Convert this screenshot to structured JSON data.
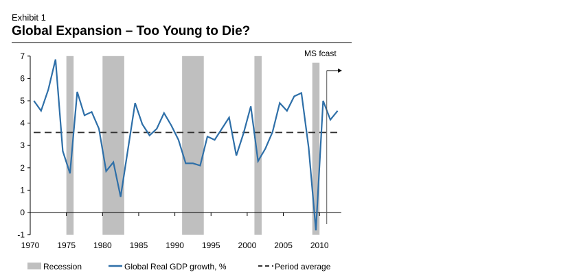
{
  "exhibit": "Exhibit 1",
  "title": "Global Expansion – Too Young to Die?",
  "chart_data": {
    "type": "line",
    "title": "Global Expansion – Too Young to Die?",
    "xlabel": "",
    "ylabel": "",
    "xlim": [
      1970,
      2013
    ],
    "ylim": [
      -1,
      7
    ],
    "x_ticks": [
      1970,
      1975,
      1980,
      1985,
      1990,
      1995,
      2000,
      2005,
      2010
    ],
    "y_ticks": [
      -1,
      0,
      1,
      2,
      3,
      4,
      5,
      6,
      7
    ],
    "series": [
      {
        "name": "Global Real GDP growth, %",
        "color": "#2e6fa8",
        "x": [
          1970,
          1971,
          1972,
          1973,
          1974,
          1975,
          1976,
          1977,
          1978,
          1979,
          1980,
          1981,
          1982,
          1983,
          1984,
          1985,
          1986,
          1987,
          1988,
          1989,
          1990,
          1991,
          1992,
          1993,
          1994,
          1995,
          1996,
          1997,
          1998,
          1999,
          2000,
          2001,
          2002,
          2003,
          2004,
          2005,
          2006,
          2007,
          2008,
          2009,
          2010,
          2011,
          2012
        ],
        "values": [
          5.0,
          4.55,
          5.5,
          6.85,
          2.75,
          1.75,
          5.4,
          4.35,
          4.5,
          3.75,
          1.85,
          2.25,
          0.7,
          2.8,
          4.9,
          3.95,
          3.45,
          3.75,
          4.45,
          3.9,
          3.25,
          2.2,
          2.2,
          2.1,
          3.4,
          3.25,
          3.75,
          4.25,
          2.55,
          3.55,
          4.75,
          2.3,
          2.85,
          3.6,
          4.9,
          4.55,
          5.2,
          5.35,
          2.9,
          -0.8,
          5.0,
          4.15,
          4.55
        ]
      }
    ],
    "period_average": {
      "name": "Period average",
      "value": 3.58
    },
    "recessions": {
      "name": "Recession",
      "color": "#bfbfbf",
      "periods": [
        [
          1975,
          1976
        ],
        [
          1980,
          1983
        ],
        [
          1991,
          1994
        ],
        [
          2001,
          2002
        ],
        [
          2009,
          2010
        ]
      ]
    },
    "annotation": {
      "text": "MS fcast",
      "from_year": 2011
    },
    "legend": {
      "placement": "bottom",
      "entries": [
        "Recession",
        "Global Real GDP growth, %",
        "Period average"
      ]
    }
  }
}
